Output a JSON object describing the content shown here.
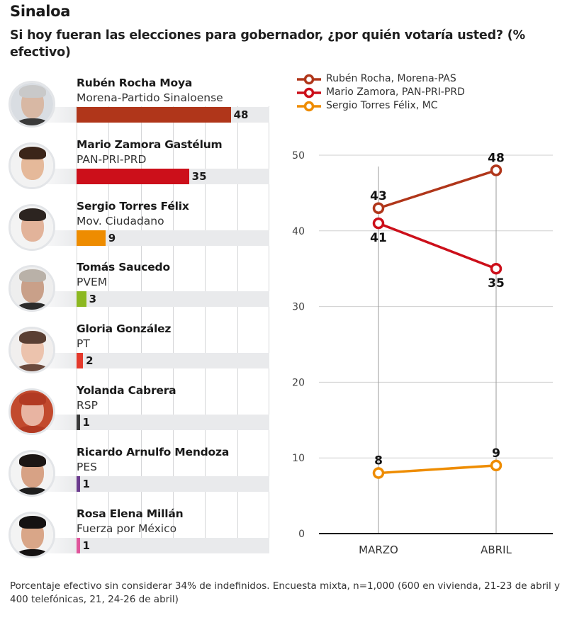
{
  "header": {
    "title": "Sinaloa",
    "subtitle": "Si hoy fueran las elecciones para gobernador, ¿por quién votaría usted? (% efectivo)"
  },
  "candidates": [
    {
      "name": "Rubén Rocha Moya",
      "party": "Morena-Partido Sinaloense",
      "value": 48,
      "label": "48",
      "color": "#b0361a",
      "photo_icon": "portrait-man-gray-hair",
      "skin": "#d8b8a4",
      "hair": "#c9c9c9",
      "bg": "#d9dde2",
      "body": "#3a3a3a"
    },
    {
      "name": "Mario Zamora Gastélum",
      "party": "PAN-PRI-PRD",
      "value": 35,
      "label": "35",
      "color": "#cc0f1a",
      "photo_icon": "portrait-man-dark-hair",
      "skin": "#e5b99a",
      "hair": "#3b2519",
      "bg": "#f2f2f2",
      "body": "#f2f2f2"
    },
    {
      "name": "Sergio Torres Félix",
      "party": "Mov. Ciudadano",
      "value": 9,
      "label": "9",
      "color": "#ee8c00",
      "photo_icon": "portrait-man-short-hair",
      "skin": "#e2b39a",
      "hair": "#2c2420",
      "bg": "#f3f3f3",
      "body": "#f3f3f3"
    },
    {
      "name": "Tomás Saucedo",
      "party": "PVEM",
      "value": 3,
      "label": "3",
      "color": "#8cb821",
      "photo_icon": "portrait-man-elderly",
      "skin": "#c9a089",
      "hair": "#b9b1a8",
      "bg": "#eeeeee",
      "body": "#2b2b2b"
    },
    {
      "name": "Gloria González",
      "party": "PT",
      "value": 2,
      "label": "2",
      "color": "#e4392c",
      "photo_icon": "portrait-woman-brown-hair",
      "skin": "#ecc3ad",
      "hair": "#5a3f33",
      "bg": "#f1efee",
      "body": "#6b4a3d"
    },
    {
      "name": "Yolanda Cabrera",
      "party": "RSP",
      "value": 1,
      "label": "1",
      "color": "#3a3a3a",
      "photo_icon": "portrait-woman-red-hair",
      "skin": "#e8b4a2",
      "hair": "#b23a23",
      "bg": "#c24a2e",
      "body": "#b23a23"
    },
    {
      "name": "Ricardo Arnulfo Mendoza",
      "party": "PES",
      "value": 1,
      "label": "1",
      "color": "#6b3b8e",
      "photo_icon": "portrait-man-mustache",
      "skin": "#d7a285",
      "hair": "#1c1614",
      "bg": "#f3f3f3",
      "body": "#1e1e1e"
    },
    {
      "name": "Rosa Elena Millán",
      "party": "Fuerza por México",
      "value": 1,
      "label": "1",
      "color": "#e0559b",
      "photo_icon": "portrait-woman-black-hair",
      "skin": "#d9a688",
      "hair": "#151212",
      "bg": "#f3f3f3",
      "body": "#151212"
    }
  ],
  "bar_axis": {
    "max": 60,
    "grid_step": 10
  },
  "chart_data": [
    {
      "type": "bar",
      "title": "Si hoy fueran las elecciones para gobernador, ¿por quién votaría usted? (% efectivo)",
      "orientation": "horizontal",
      "categories": [
        "Rubén Rocha Moya",
        "Mario Zamora Gastélum",
        "Sergio Torres Félix",
        "Tomás Saucedo",
        "Gloria González",
        "Yolanda Cabrera",
        "Ricardo Arnulfo Mendoza",
        "Rosa Elena Millán"
      ],
      "values": [
        48,
        35,
        9,
        3,
        2,
        1,
        1,
        1
      ],
      "xlim": [
        0,
        60
      ],
      "grid": true
    },
    {
      "type": "line",
      "categories": [
        "MARZO",
        "ABRIL"
      ],
      "series": [
        {
          "name": "Rubén Rocha, Morena-PAS",
          "values": [
            43,
            48
          ],
          "labels": [
            "43",
            "48"
          ],
          "label_pos": [
            "above",
            "above"
          ],
          "color": "#b0361a"
        },
        {
          "name": "Mario Zamora, PAN-PRI-PRD",
          "values": [
            41,
            35
          ],
          "labels": [
            "41",
            "35"
          ],
          "label_pos": [
            "below",
            "below"
          ],
          "color": "#cc0f1a"
        },
        {
          "name": "Sergio Torres Félix, MC",
          "values": [
            8,
            9
          ],
          "labels": [
            "8",
            "9"
          ],
          "label_pos": [
            "above",
            "above"
          ],
          "color": "#ee8c00"
        }
      ],
      "yticks": [
        0,
        10,
        20,
        30,
        40,
        50
      ],
      "ytick_labels": [
        "0",
        "10",
        "20",
        "30",
        "40",
        "50"
      ],
      "ylim": [
        0,
        50
      ],
      "legend": "top-left",
      "grid": true
    }
  ],
  "footnote": "Porcentaje efectivo sin considerar 34% de indefinidos. Encuesta mixta, n=1,000 (600 en vivienda, 21-23 de abril y 400 telefónicas, 21, 24-26 de abril)"
}
